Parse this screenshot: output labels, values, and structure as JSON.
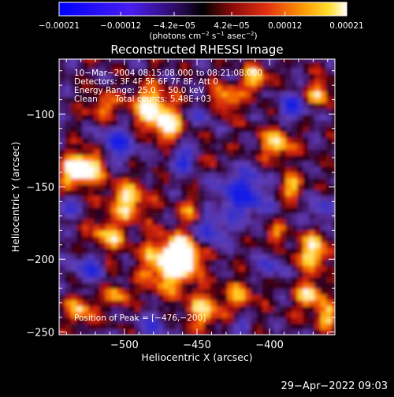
{
  "chart_data": {
    "type": "heatmap",
    "title": "Reconstructed RHESSI Image",
    "xlabel": "Heliocentric X (arcsec)",
    "ylabel": "Heliocentric Y (arcsec)",
    "xlim": [
      -545,
      -355
    ],
    "ylim": [
      -252,
      -62
    ],
    "x_ticks": [
      -500,
      -450,
      -400
    ],
    "x_tick_labels": [
      "−500",
      "−450",
      "−400"
    ],
    "y_ticks": [
      -100,
      -150,
      -200,
      -250
    ],
    "y_tick_labels": [
      "−100",
      "−150",
      "−200",
      "−250"
    ],
    "colorbar": {
      "range": [
        -0.00021,
        0.00021
      ],
      "tick_values": [
        -0.00021,
        -0.00012,
        -4.2e-05,
        4.2e-05,
        0.00012,
        0.00021
      ],
      "tick_labels": [
        "−0.00021",
        "−0.00012",
        "−4.2e−05",
        "4.2e−05",
        "0.00012",
        "0.00021"
      ],
      "units_main": "(photons cm",
      "units_exp1": "−2",
      "units_s": " s",
      "units_exp2": "−1",
      "units_asec": " asec",
      "units_exp3": "−2",
      "units_close": ")"
    },
    "annotations": {
      "time_range": "10−Mar−2004 08:15:08.000 to 08:21:08.000",
      "detectors": "Detectors: 3F 4F 5F 6F 7F 8F, Att 0",
      "energy": "Energy Range: 25.0 − 50.0 keV",
      "method": "Clean",
      "counts": "Total counts: 5.48E+03",
      "peak": "Position of Peak = [−476,−200]"
    },
    "peak_position": [
      -476,
      -200
    ],
    "footer_date": "29−Apr−2022 09:03"
  },
  "colors": {
    "background": "#000000",
    "negative_min": "#0000ff",
    "negative_mid": "#6a3acc",
    "zero": "#000000",
    "positive_low": "#c81e0a",
    "positive_mid": "#ff9200",
    "positive_max": "#ffffff"
  }
}
